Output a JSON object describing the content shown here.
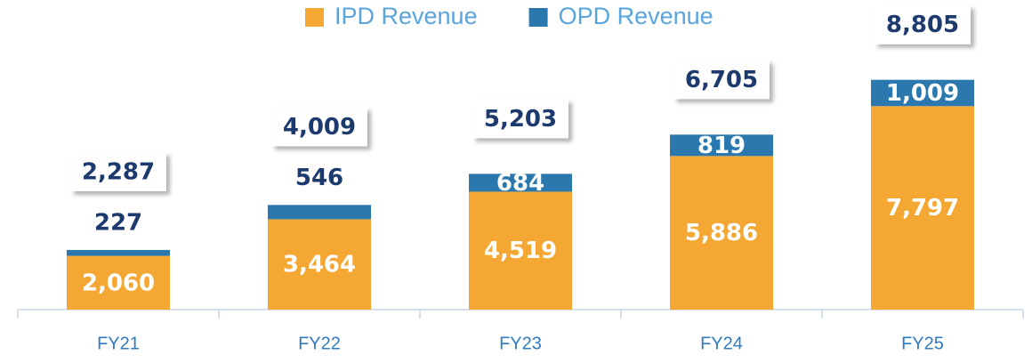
{
  "chart_data": {
    "type": "stacked_bar",
    "categories": [
      "FY21",
      "FY22",
      "FY23",
      "FY24",
      "FY25"
    ],
    "series": [
      {
        "name": "IPD Revenue",
        "color": "#f4a833",
        "values": [
          2060,
          3464,
          4519,
          5886,
          7797
        ],
        "value_labels": [
          "2,060",
          "3,464",
          "4,519",
          "5,886",
          "7,797"
        ]
      },
      {
        "name": "OPD Revenue",
        "color": "#2a78ad",
        "values": [
          227,
          546,
          684,
          819,
          1009
        ],
        "value_labels": [
          "227",
          "546",
          "684",
          "819",
          "1,009"
        ]
      }
    ],
    "totals": [
      2287,
      4009,
      5203,
      6705,
      8805
    ],
    "total_labels": [
      "2,287",
      "4,009",
      "5,203",
      "6,705",
      "8,805"
    ],
    "ylim": [
      0,
      12000
    ],
    "legend": "top"
  }
}
